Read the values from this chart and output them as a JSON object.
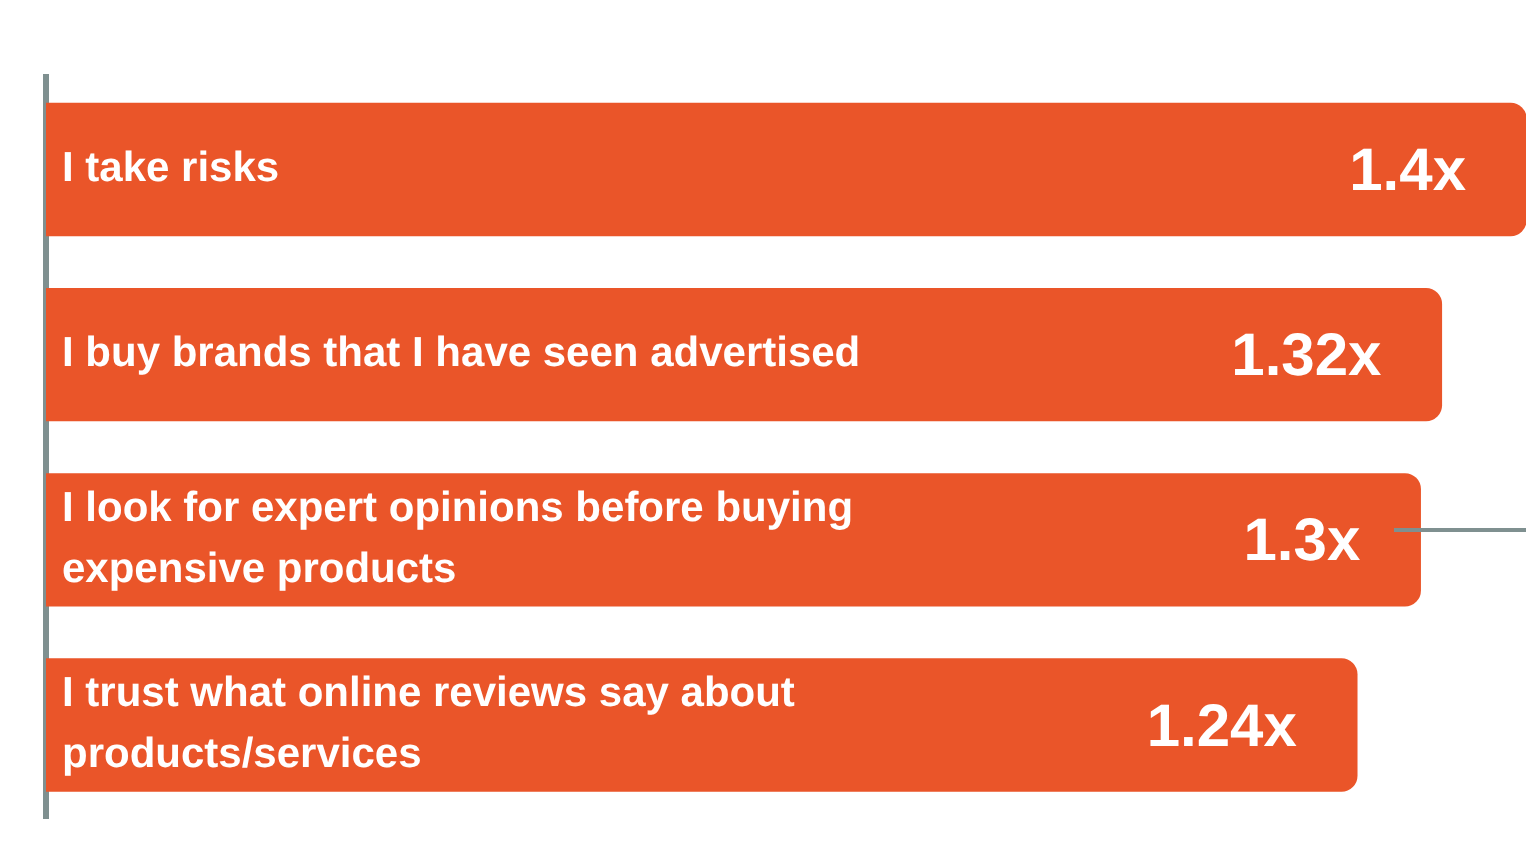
{
  "chart_data": {
    "type": "bar",
    "orientation": "horizontal",
    "categories": [
      "I take risks",
      "I buy brands that I have seen advertised",
      "I look for expert opinions before buying expensive products",
      "I trust what online reviews say about products/services"
    ],
    "values": [
      1.4,
      1.32,
      1.3,
      1.24
    ],
    "value_labels": [
      "1.4x",
      "1.32x",
      "1.3x",
      "1.24x"
    ],
    "color": "#ea5529",
    "xlim": [
      0,
      1.4
    ],
    "tick_labels": "y"
  }
}
